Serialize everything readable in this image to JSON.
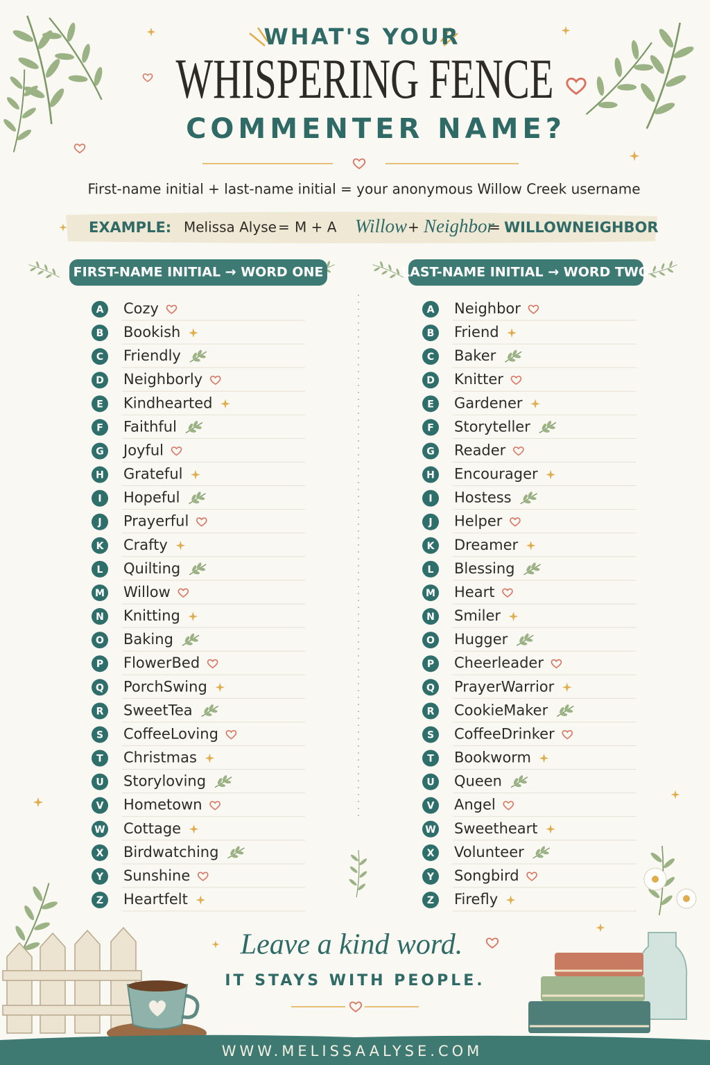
{
  "header": {
    "eyebrow": "WHAT'S YOUR",
    "title": "WHISPERING FENCE",
    "subtitle": "COMMENTER NAME?"
  },
  "intro": "First-name initial + last-name initial = your anonymous Willow Creek username",
  "example": {
    "label": "EXAMPLE:",
    "name": "Melissa Alyse",
    "equals1": "=",
    "initials": "M + A",
    "word1": "Willow",
    "plus": "+",
    "word2": "Neighbor",
    "equals2": "=",
    "result": "WILLOWNEIGHBOR"
  },
  "columns": [
    {
      "heading": "FIRST-NAME INITIAL → WORD ONE",
      "rows": [
        {
          "letter": "A",
          "word": "Cozy"
        },
        {
          "letter": "B",
          "word": "Bookish"
        },
        {
          "letter": "C",
          "word": "Friendly"
        },
        {
          "letter": "D",
          "word": "Neighborly"
        },
        {
          "letter": "E",
          "word": "Kindhearted"
        },
        {
          "letter": "F",
          "word": "Faithful"
        },
        {
          "letter": "G",
          "word": "Joyful"
        },
        {
          "letter": "H",
          "word": "Grateful"
        },
        {
          "letter": "I",
          "word": "Hopeful"
        },
        {
          "letter": "J",
          "word": "Prayerful"
        },
        {
          "letter": "K",
          "word": "Crafty"
        },
        {
          "letter": "L",
          "word": "Quilting"
        },
        {
          "letter": "M",
          "word": "Willow"
        },
        {
          "letter": "N",
          "word": "Knitting"
        },
        {
          "letter": "O",
          "word": "Baking"
        },
        {
          "letter": "P",
          "word": "FlowerBed"
        },
        {
          "letter": "Q",
          "word": "PorchSwing"
        },
        {
          "letter": "R",
          "word": "SweetTea"
        },
        {
          "letter": "S",
          "word": "CoffeeLoving"
        },
        {
          "letter": "T",
          "word": "Christmas"
        },
        {
          "letter": "U",
          "word": "Storyloving"
        },
        {
          "letter": "V",
          "word": "Hometown"
        },
        {
          "letter": "W",
          "word": "Cottage"
        },
        {
          "letter": "X",
          "word": "Birdwatching"
        },
        {
          "letter": "Y",
          "word": "Sunshine"
        },
        {
          "letter": "Z",
          "word": "Heartfelt"
        }
      ]
    },
    {
      "heading": "LAST-NAME INITIAL → WORD TWO",
      "rows": [
        {
          "letter": "A",
          "word": "Neighbor"
        },
        {
          "letter": "B",
          "word": "Friend"
        },
        {
          "letter": "C",
          "word": "Baker"
        },
        {
          "letter": "D",
          "word": "Knitter"
        },
        {
          "letter": "E",
          "word": "Gardener"
        },
        {
          "letter": "F",
          "word": "Storyteller"
        },
        {
          "letter": "G",
          "word": "Reader"
        },
        {
          "letter": "H",
          "word": "Encourager"
        },
        {
          "letter": "I",
          "word": "Hostess"
        },
        {
          "letter": "J",
          "word": "Helper"
        },
        {
          "letter": "K",
          "word": "Dreamer"
        },
        {
          "letter": "L",
          "word": "Blessing"
        },
        {
          "letter": "M",
          "word": "Heart"
        },
        {
          "letter": "N",
          "word": "Smiler"
        },
        {
          "letter": "O",
          "word": "Hugger"
        },
        {
          "letter": "P",
          "word": "Cheerleader"
        },
        {
          "letter": "Q",
          "word": "PrayerWarrior"
        },
        {
          "letter": "R",
          "word": "CookieMaker"
        },
        {
          "letter": "S",
          "word": "CoffeeDrinker"
        },
        {
          "letter": "T",
          "word": "Bookworm"
        },
        {
          "letter": "U",
          "word": "Queen"
        },
        {
          "letter": "V",
          "word": "Angel"
        },
        {
          "letter": "W",
          "word": "Sweetheart"
        },
        {
          "letter": "X",
          "word": "Volunteer"
        },
        {
          "letter": "Y",
          "word": "Songbird"
        },
        {
          "letter": "Z",
          "word": "Firefly"
        }
      ]
    }
  ],
  "footer": {
    "tagline": "Leave a kind word.",
    "line": "IT STAYS WITH PEOPLE.",
    "url": "WWW.MELISSAALYSE.COM"
  }
}
